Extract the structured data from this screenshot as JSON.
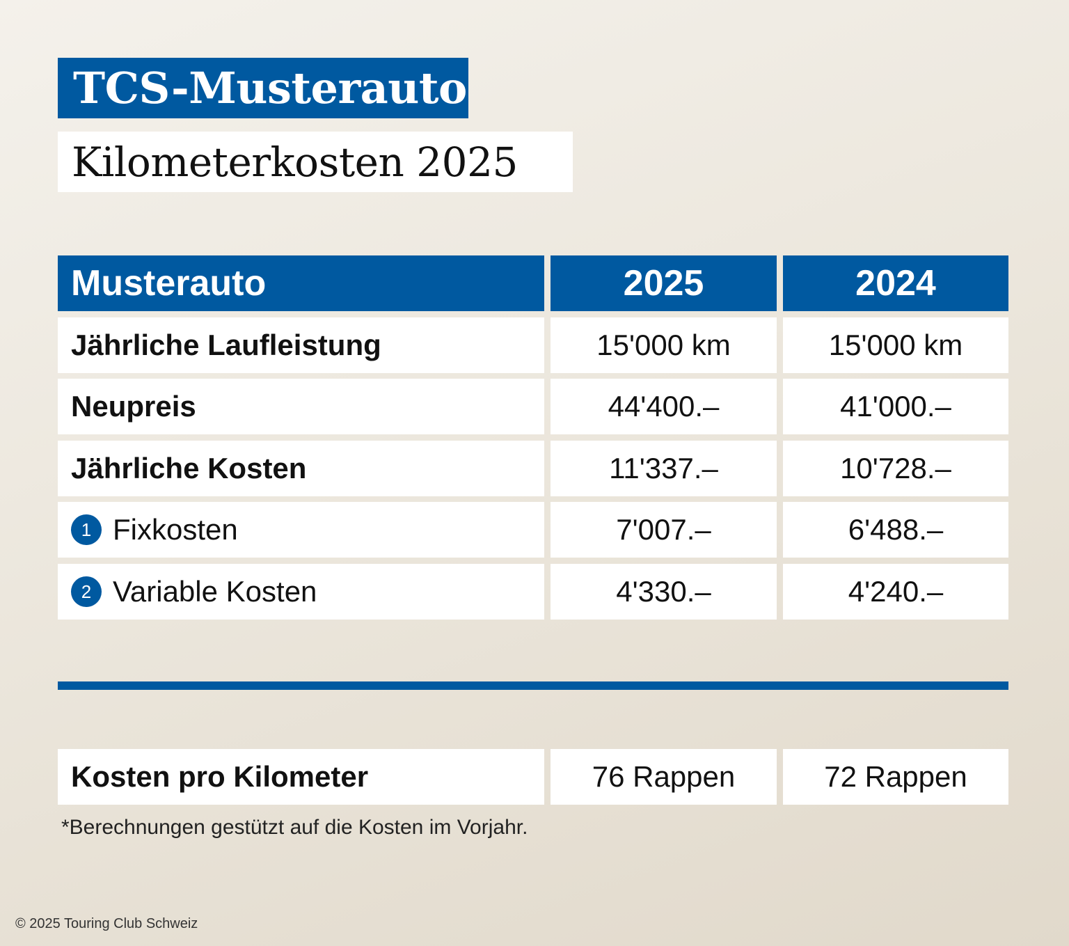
{
  "title": "TCS-Musterauto",
  "subtitle": "Kilometerkosten 2025",
  "table": {
    "header": [
      "Musterauto",
      "2025",
      "2024"
    ],
    "rows": [
      {
        "label": "Jährliche Laufleistung",
        "v2025": "15'000 km",
        "v2024": "15'000 km"
      },
      {
        "label": "Neupreis",
        "v2025": "44'400.–",
        "v2024": "41'000.–"
      },
      {
        "label": "Jährliche Kosten",
        "v2025": "11'337.–",
        "v2024": "10'728.–"
      },
      {
        "badge": "1",
        "label": "Fixkosten",
        "v2025": "7'007.–",
        "v2024": "6'488.–"
      },
      {
        "badge": "2",
        "label": "Variable Kosten",
        "v2025": "4'330.–",
        "v2024": "4'240.–"
      }
    ],
    "summary": {
      "label": "Kosten pro Kilometer",
      "v2025": "76 Rappen",
      "v2024": "72 Rappen"
    }
  },
  "footnote": "*Berechnungen gestützt auf die Kosten im Vorjahr.",
  "copyright": "© 2025 Touring Club Schweiz",
  "colors": {
    "brand_blue": "#0059a0",
    "background": "#ece7dd",
    "cell": "#ffffff"
  }
}
